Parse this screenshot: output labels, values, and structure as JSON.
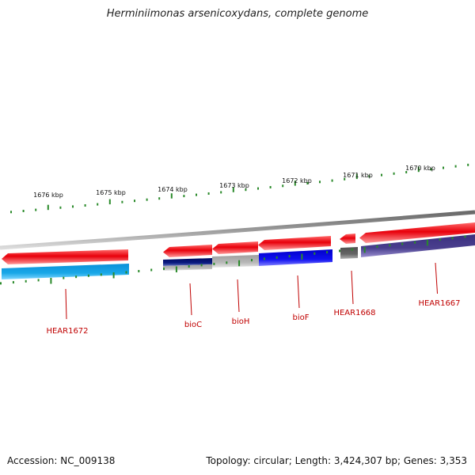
{
  "title": "Herminiimonas arsenicoxydans, complete genome",
  "footer": {
    "accession": "Accession: NC_009138",
    "summary": "Topology: circular; Length: 3,424,307 bp; Genes: 3,353"
  },
  "ruler": {
    "ticks": [
      {
        "label": "1676 kbp"
      },
      {
        "label": "1675 kbp"
      },
      {
        "label": "1674 kbp"
      },
      {
        "label": "1673 kbp"
      },
      {
        "label": "1672 kbp"
      },
      {
        "label": "1671 kbp"
      },
      {
        "label": "1670 kbp"
      }
    ]
  },
  "genes": [
    {
      "name": "HEAR1672",
      "color": "#e8000b"
    },
    {
      "name": "bioC",
      "color": "#e8000b"
    },
    {
      "name": "bioH",
      "color": "#e8000b"
    },
    {
      "name": "bioF",
      "color": "#e8000b"
    },
    {
      "name": "HEAR1668",
      "color": "#e8000b"
    },
    {
      "name": "HEAR1667",
      "color": "#e8000b"
    }
  ],
  "colors": {
    "forward_strand": "#e8000b",
    "cyan_category": "#1aa8e8",
    "navy_category": "#0a1a80",
    "gray_category": "#b4b4b4",
    "blue_category": "#1010f0",
    "dark_gray_category": "#606060",
    "slate_category": "#4a3f8e",
    "backbone": "#8a8a8a",
    "tick": "#2a8a2a",
    "label": "#c00000"
  }
}
